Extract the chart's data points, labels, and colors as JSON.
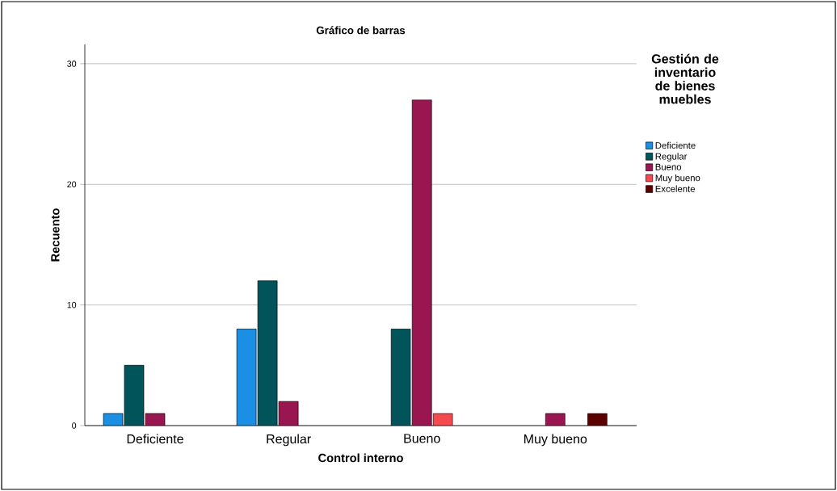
{
  "chart_data": {
    "type": "bar",
    "title": "Gráfico de barras",
    "xlabel": "Control interno",
    "ylabel": "Recuento",
    "legend_title": "Gestión de inventario de bienes muebles",
    "categories": [
      "Deficiente",
      "Regular",
      "Bueno",
      "Muy bueno"
    ],
    "series": [
      {
        "name": "Deficiente",
        "color": "#1a8fe3",
        "values": [
          1,
          8,
          null,
          null
        ]
      },
      {
        "name": "Regular",
        "color": "#00545a",
        "values": [
          5,
          12,
          8,
          null
        ]
      },
      {
        "name": "Bueno",
        "color": "#991651",
        "values": [
          1,
          2,
          27,
          1
        ]
      },
      {
        "name": "Muy bueno",
        "color": "#f44a4f",
        "values": [
          null,
          null,
          1,
          null
        ]
      },
      {
        "name": "Excelente",
        "color": "#5c0000",
        "values": [
          null,
          null,
          null,
          1
        ]
      }
    ],
    "ylim": [
      0,
      31.6
    ],
    "yticks": [
      0,
      10,
      20,
      30
    ],
    "grid": "y",
    "legend": "right"
  }
}
